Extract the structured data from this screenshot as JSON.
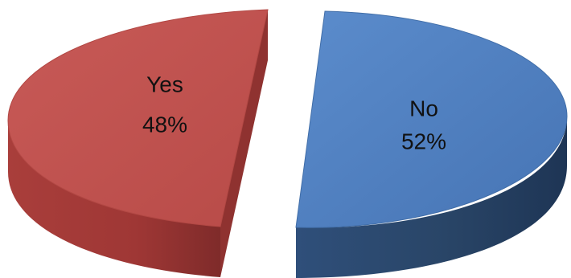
{
  "chart_data": {
    "type": "pie",
    "title": "",
    "categories": [
      "Yes",
      "No"
    ],
    "values": [
      48,
      52
    ],
    "value_labels": [
      "48%",
      "52%"
    ],
    "legend": "none",
    "three_d": true,
    "exploded": true,
    "colors": {
      "Yes": "#C0504D",
      "No": "#4F81BD"
    }
  }
}
